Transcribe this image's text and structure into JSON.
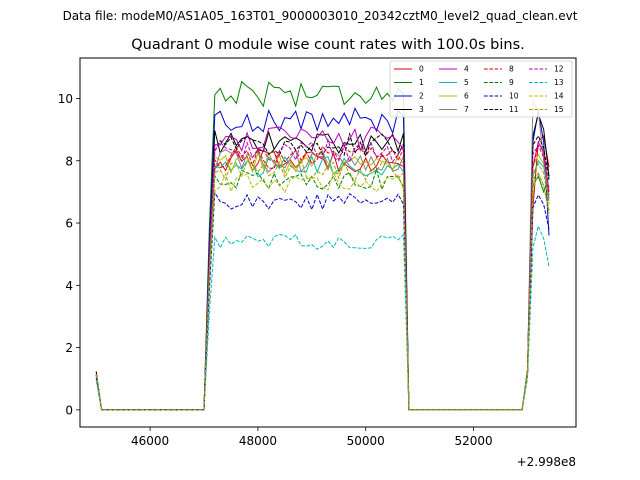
{
  "header": {
    "suptitle": "Data file: modeM0/AS1A05_163T01_9000003010_20342cztM0_level2_quad_clean.evt"
  },
  "chart_data": {
    "type": "line",
    "title": "Quadrant 0 module wise count rates with 100.0s bins.",
    "xlabel": "",
    "ylabel": "",
    "x_offset_label": "+2.998e8",
    "xlim": [
      44700,
      53900
    ],
    "ylim": [
      -0.55,
      11.3
    ],
    "xticks": [
      46000,
      48000,
      50000,
      52000
    ],
    "xtick_labels": [
      "46000",
      "48000",
      "50000",
      "52000"
    ],
    "yticks": [
      0,
      2,
      4,
      6,
      8,
      10
    ],
    "ytick_labels": [
      "0",
      "2",
      "4",
      "6",
      "8",
      "10"
    ],
    "grid": false,
    "legend_position": "top-right",
    "segments": [
      {
        "x_start": 45000,
        "x_end": 45100,
        "kind": "edge",
        "n": 2
      },
      {
        "x_start": 45100,
        "x_end": 47000,
        "kind": "zero",
        "n": 20
      },
      {
        "x_start": 47100,
        "x_end": 50700,
        "kind": "plateau",
        "n": 37
      },
      {
        "x_start": 50800,
        "x_end": 50800,
        "kind": "fall",
        "n": 1
      },
      {
        "x_start": 50900,
        "x_end": 52900,
        "kind": "zero",
        "n": 21
      },
      {
        "x_start": 53000,
        "x_end": 53400,
        "kind": "tail",
        "n": 5
      }
    ],
    "series": [
      {
        "name": "0",
        "color": "#e00000",
        "dash": "solid",
        "level": 8.0,
        "tail": [
          1.2,
          6.5,
          8.6,
          8.8,
          7.8
        ]
      },
      {
        "name": "1",
        "color": "#008000",
        "dash": "solid",
        "level": 10.2,
        "tail": [
          1.2,
          7.2,
          7.5,
          7.0,
          7.5
        ]
      },
      {
        "name": "2",
        "color": "#0000cc",
        "dash": "solid",
        "level": 9.3,
        "tail": [
          1.2,
          8.6,
          9.6,
          8.6,
          5.6
        ]
      },
      {
        "name": "3",
        "color": "#000000",
        "dash": "solid",
        "level": 8.6,
        "tail": [
          1.3,
          8.8,
          9.5,
          9.0,
          7.5
        ]
      },
      {
        "name": "4",
        "color": "#bb00bb",
        "dash": "solid",
        "level": 8.7,
        "tail": [
          1.2,
          7.8,
          8.6,
          8.3,
          7.0
        ]
      },
      {
        "name": "5",
        "color": "#00bbaa",
        "dash": "solid",
        "level": 7.8,
        "tail": [
          1.2,
          7.5,
          8.0,
          7.8,
          6.8
        ]
      },
      {
        "name": "6",
        "color": "#bbbb00",
        "dash": "solid",
        "level": 7.9,
        "tail": [
          1.2,
          7.8,
          8.2,
          7.9,
          6.9
        ]
      },
      {
        "name": "7",
        "color": "#808080",
        "dash": "solid",
        "level": 8.0,
        "tail": [
          1.2,
          9.9,
          9.6,
          8.0,
          6.7
        ]
      },
      {
        "name": "8",
        "color": "#e00000",
        "dash": "dashed",
        "level": 8.1,
        "tail": [
          1.2,
          7.8,
          8.5,
          8.3,
          6.9
        ]
      },
      {
        "name": "9",
        "color": "#008000",
        "dash": "dashed",
        "level": 7.4,
        "tail": [
          1.2,
          7.4,
          7.6,
          7.2,
          6.4
        ]
      },
      {
        "name": "10",
        "color": "#0000cc",
        "dash": "dashed",
        "level": 6.7,
        "tail": [
          1.1,
          6.5,
          6.9,
          6.6,
          5.8
        ]
      },
      {
        "name": "11",
        "color": "#000000",
        "dash": "dashed",
        "level": 8.5,
        "tail": [
          1.2,
          8.5,
          8.8,
          8.4,
          7.4
        ]
      },
      {
        "name": "12",
        "color": "#bb00bb",
        "dash": "dashed",
        "level": 8.3,
        "tail": [
          1.2,
          8.2,
          8.5,
          8.1,
          7.1
        ]
      },
      {
        "name": "13",
        "color": "#00bbbb",
        "dash": "dashed",
        "level": 5.4,
        "tail": [
          1.0,
          5.2,
          5.9,
          5.5,
          4.6
        ]
      },
      {
        "name": "14",
        "color": "#bbbb00",
        "dash": "dashed",
        "level": 7.3,
        "tail": [
          1.2,
          7.1,
          7.6,
          7.2,
          6.3
        ]
      },
      {
        "name": "15",
        "color": "#a0a000",
        "dash": "dashed",
        "level": 7.7,
        "tail": [
          1.2,
          7.6,
          7.9,
          7.6,
          6.6
        ]
      }
    ]
  }
}
